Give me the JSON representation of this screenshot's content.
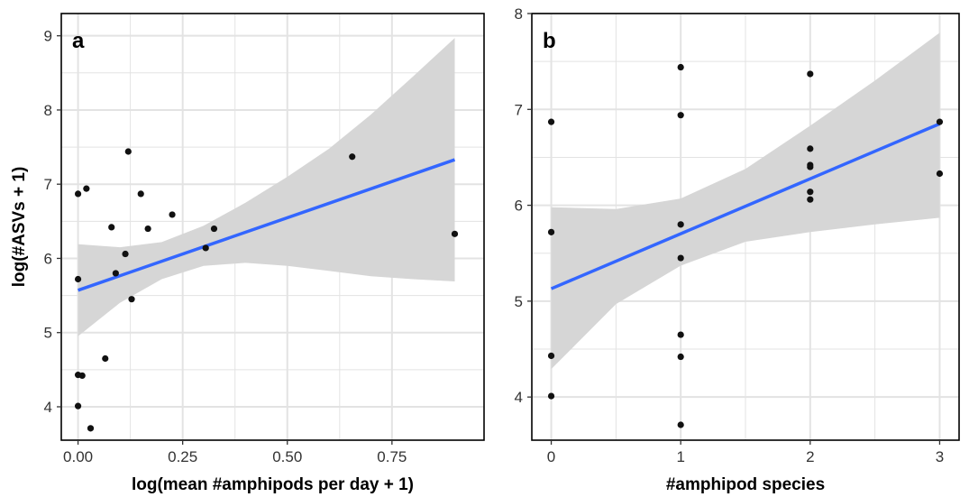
{
  "colors": {
    "grid": "#e3e3e3",
    "ribbon": "#d6d6d6",
    "line": "#3366ff",
    "point": "#111111"
  },
  "chart_data": [
    {
      "type": "scatter",
      "panel_label": "a",
      "xlabel": "log(mean #amphipods per day + 1)",
      "ylabel": "log(#ASVs + 1)",
      "xlim": [
        -0.04,
        0.97
      ],
      "ylim": [
        3.55,
        9.3
      ],
      "xticks": [
        0.0,
        0.25,
        0.5,
        0.75
      ],
      "xtick_labels": [
        "0.00",
        "0.25",
        "0.50",
        "0.75"
      ],
      "yticks": [
        4,
        5,
        6,
        7,
        8,
        9
      ],
      "ytick_labels": [
        "4",
        "5",
        "6",
        "7",
        "8",
        "9"
      ],
      "grid": true,
      "points": [
        {
          "x": 0.0,
          "y": 6.87
        },
        {
          "x": 0.0,
          "y": 5.72
        },
        {
          "x": 0.0,
          "y": 4.43
        },
        {
          "x": 0.0,
          "y": 4.01
        },
        {
          "x": 0.01,
          "y": 4.42
        },
        {
          "x": 0.02,
          "y": 6.94
        },
        {
          "x": 0.03,
          "y": 3.71
        },
        {
          "x": 0.065,
          "y": 4.65
        },
        {
          "x": 0.08,
          "y": 6.42
        },
        {
          "x": 0.09,
          "y": 5.8
        },
        {
          "x": 0.113,
          "y": 6.06
        },
        {
          "x": 0.12,
          "y": 7.44
        },
        {
          "x": 0.128,
          "y": 5.45
        },
        {
          "x": 0.15,
          "y": 6.87
        },
        {
          "x": 0.167,
          "y": 6.4
        },
        {
          "x": 0.225,
          "y": 6.59
        },
        {
          "x": 0.305,
          "y": 6.14
        },
        {
          "x": 0.325,
          "y": 6.4
        },
        {
          "x": 0.655,
          "y": 7.37
        },
        {
          "x": 0.9,
          "y": 6.33
        }
      ],
      "fit": {
        "x": [
          0.0,
          0.9
        ],
        "y": [
          5.57,
          7.33
        ]
      },
      "ribbon": {
        "x": [
          0.0,
          0.1,
          0.2,
          0.3,
          0.4,
          0.5,
          0.6,
          0.7,
          0.8,
          0.9
        ],
        "lower": [
          4.95,
          5.4,
          5.72,
          5.9,
          5.94,
          5.9,
          5.83,
          5.76,
          5.72,
          5.69
        ],
        "upper": [
          6.19,
          6.15,
          6.22,
          6.44,
          6.75,
          7.1,
          7.48,
          7.94,
          8.45,
          8.97
        ]
      }
    },
    {
      "type": "scatter",
      "panel_label": "b",
      "xlabel": "#amphipod species",
      "ylabel": "",
      "xlim": [
        -0.15,
        3.15
      ],
      "ylim": [
        3.55,
        8.0
      ],
      "xticks": [
        0,
        1,
        2,
        3
      ],
      "xtick_labels": [
        "0",
        "1",
        "2",
        "3"
      ],
      "yticks": [
        4,
        5,
        6,
        7,
        8
      ],
      "ytick_labels": [
        "4",
        "5",
        "6",
        "7",
        "8"
      ],
      "grid": true,
      "points": [
        {
          "x": 0,
          "y": 6.87
        },
        {
          "x": 0,
          "y": 5.72
        },
        {
          "x": 0,
          "y": 4.43
        },
        {
          "x": 0,
          "y": 4.01
        },
        {
          "x": 1,
          "y": 7.44
        },
        {
          "x": 1,
          "y": 6.94
        },
        {
          "x": 1,
          "y": 5.8
        },
        {
          "x": 1,
          "y": 5.45
        },
        {
          "x": 1,
          "y": 4.65
        },
        {
          "x": 1,
          "y": 4.42
        },
        {
          "x": 1,
          "y": 3.71
        },
        {
          "x": 2,
          "y": 7.37
        },
        {
          "x": 2,
          "y": 6.59
        },
        {
          "x": 2,
          "y": 6.42
        },
        {
          "x": 2,
          "y": 6.4
        },
        {
          "x": 2,
          "y": 6.14
        },
        {
          "x": 2,
          "y": 6.06
        },
        {
          "x": 3,
          "y": 6.87
        },
        {
          "x": 3,
          "y": 6.33
        }
      ],
      "fit": {
        "x": [
          0,
          3
        ],
        "y": [
          5.13,
          6.85
        ]
      },
      "ribbon": {
        "x": [
          0,
          0.5,
          1,
          1.5,
          2,
          2.5,
          3
        ],
        "lower": [
          4.29,
          4.97,
          5.37,
          5.62,
          5.72,
          5.8,
          5.87
        ],
        "upper": [
          5.98,
          5.96,
          6.07,
          6.38,
          6.83,
          7.3,
          7.8
        ]
      }
    }
  ]
}
